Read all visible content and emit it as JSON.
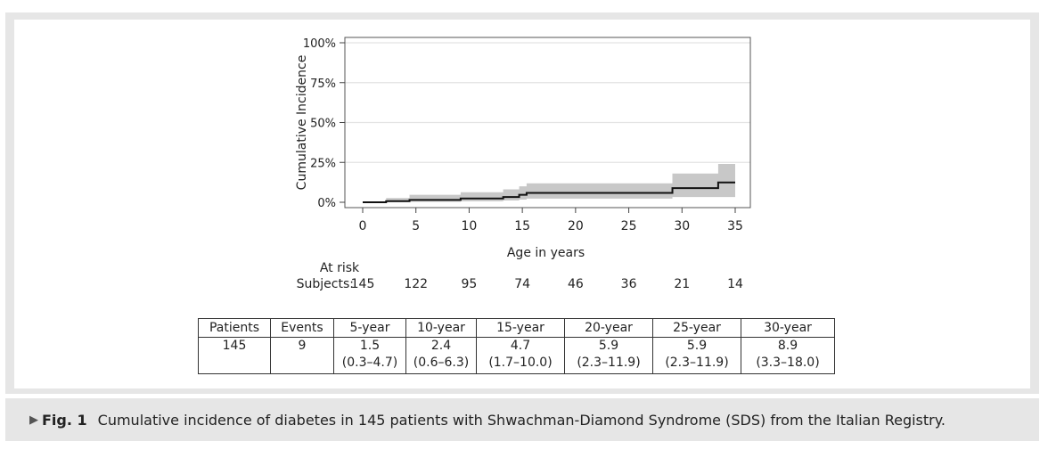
{
  "chart_data": {
    "type": "line",
    "ylabel": "Cumulative Incidence",
    "xlabel": "Age in years",
    "xlim": [
      0,
      35
    ],
    "ylim": [
      0,
      100
    ],
    "x_ticks": [
      "0",
      "5",
      "10",
      "15",
      "20",
      "25",
      "30",
      "35"
    ],
    "y_ticks": [
      "0%",
      "25%",
      "50%",
      "75%",
      "100%"
    ],
    "y_tick_values": [
      0,
      25,
      50,
      75,
      100
    ],
    "x_tick_values": [
      0,
      5,
      10,
      15,
      20,
      25,
      30,
      35
    ],
    "grid": true,
    "series": [
      {
        "name": "Cumulative incidence",
        "x": [
          0,
          2.2,
          4.4,
          9.2,
          13.2,
          14.7,
          15.4,
          29.1,
          33.4,
          35
        ],
        "y": [
          0,
          0.7,
          1.5,
          2.4,
          3.3,
          4.7,
          5.9,
          8.9,
          12.4,
          12.4
        ],
        "ci_lower": [
          0,
          0.1,
          0.3,
          0.6,
          1.1,
          1.7,
          2.3,
          3.3,
          3.3,
          3.3
        ],
        "ci_upper": [
          0,
          2.7,
          4.7,
          6.3,
          8.1,
          10.0,
          11.9,
          18.0,
          24.0,
          24.0
        ]
      }
    ],
    "at_risk": {
      "header": "At risk",
      "row_label": "Subjects:",
      "values": [
        "145",
        "122",
        "95",
        "74",
        "46",
        "36",
        "21",
        "14"
      ]
    }
  },
  "colors": {
    "line": "#111111",
    "ci_fill": "#c8c8c8",
    "grid": "#e3e3e3",
    "frame": "#e6e6e6"
  },
  "summary_table": {
    "headers": [
      "Patients",
      "Events",
      "5-year",
      "10-year",
      "15-year",
      "20-year",
      "25-year",
      "30-year"
    ],
    "patients": "145",
    "events": "9",
    "estimates": [
      "1.5",
      "2.4",
      "4.7",
      "5.9",
      "5.9",
      "8.9"
    ],
    "intervals": [
      "(0.3–4.7)",
      "(0.6–6.3)",
      "(1.7–10.0)",
      "(2.3–11.9)",
      "(2.3–11.9)",
      "(3.3–18.0)"
    ]
  },
  "caption": {
    "arrow": "▶",
    "label": "Fig. 1",
    "text": "Cumulative incidence of diabetes in 145 patients with Shwachman-Diamond Syndrome (SDS) from the Italian Registry."
  }
}
